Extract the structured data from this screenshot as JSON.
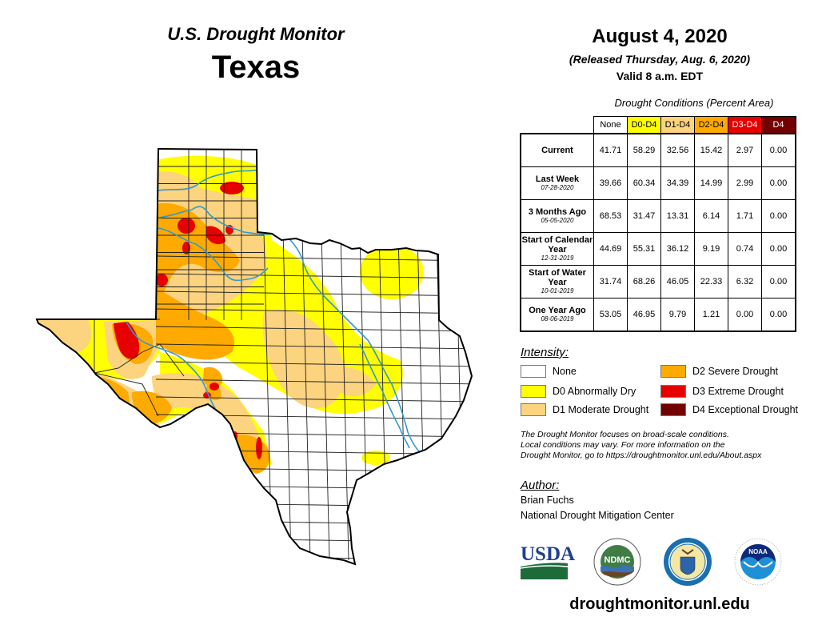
{
  "header": {
    "title": "U.S. Drought Monitor",
    "state": "Texas",
    "date": "August 4, 2020",
    "released": "(Released Thursday, Aug. 6, 2020)",
    "valid": "Valid 8 a.m. EDT"
  },
  "conditions_table": {
    "title": "Drought Conditions (Percent Area)",
    "columns": [
      {
        "label": "None",
        "bg": "#ffffff",
        "fg": "#000000"
      },
      {
        "label": "D0-D4",
        "bg": "#ffff00",
        "fg": "#000000"
      },
      {
        "label": "D1-D4",
        "bg": "#fcd37f",
        "fg": "#000000"
      },
      {
        "label": "D2-D4",
        "bg": "#ffaa00",
        "fg": "#000000"
      },
      {
        "label": "D3-D4",
        "bg": "#e60000",
        "fg": "#ffffff"
      },
      {
        "label": "D4",
        "bg": "#730000",
        "fg": "#ffffff"
      }
    ],
    "rows": [
      {
        "label": "Current",
        "date": "",
        "values": [
          "41.71",
          "58.29",
          "32.56",
          "15.42",
          "2.97",
          "0.00"
        ]
      },
      {
        "label": "Last Week",
        "date": "07-28-2020",
        "values": [
          "39.66",
          "60.34",
          "34.39",
          "14.99",
          "2.99",
          "0.00"
        ]
      },
      {
        "label": "3 Months Ago",
        "date": "05-05-2020",
        "values": [
          "68.53",
          "31.47",
          "13.31",
          "6.14",
          "1.71",
          "0.00"
        ]
      },
      {
        "label": "Start of Calendar Year",
        "date": "12-31-2019",
        "values": [
          "44.69",
          "55.31",
          "36.12",
          "9.19",
          "0.74",
          "0.00"
        ]
      },
      {
        "label": "Start of Water Year",
        "date": "10-01-2019",
        "values": [
          "31.74",
          "68.26",
          "46.05",
          "22.33",
          "6.32",
          "0.00"
        ]
      },
      {
        "label": "One Year Ago",
        "date": "08-06-2019",
        "values": [
          "53.05",
          "46.95",
          "9.79",
          "1.21",
          "0.00",
          "0.00"
        ]
      }
    ]
  },
  "legend": {
    "title": "Intensity:",
    "items": [
      {
        "label": "None",
        "color": "#ffffff"
      },
      {
        "label": "D0 Abnormally Dry",
        "color": "#ffff00"
      },
      {
        "label": "D1 Moderate Drought",
        "color": "#fcd37f"
      },
      {
        "label": "D2 Severe Drought",
        "color": "#ffaa00"
      },
      {
        "label": "D3 Extreme Drought",
        "color": "#e60000"
      },
      {
        "label": "D4 Exceptional Drought",
        "color": "#730000"
      }
    ]
  },
  "disclaimer": {
    "line1": "The Drought Monitor focuses on broad-scale conditions.",
    "line2": "Local conditions may vary. For more information on the",
    "line3": "Drought Monitor, go to https://droughtmonitor.unl.edu/About.aspx"
  },
  "author": {
    "title": "Author:",
    "name": "Brian Fuchs",
    "organization": "National Drought Mitigation Center"
  },
  "logos": {
    "usda": "USDA",
    "ndmc": "NDMC",
    "noaa": "NOAA"
  },
  "footer": {
    "url": "droughtmonitor.unl.edu"
  },
  "colors": {
    "river": "#3399cc",
    "border": "#000000"
  }
}
